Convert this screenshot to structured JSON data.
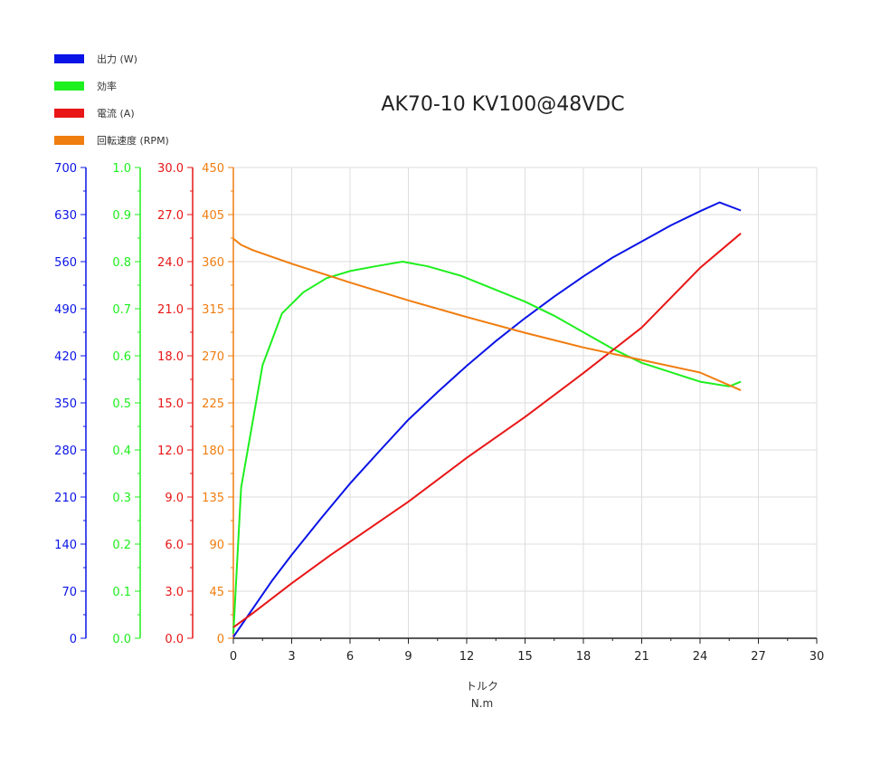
{
  "chart_data": {
    "type": "line",
    "title": "AK70-10 KV100@48VDC",
    "xlabel": "トルク",
    "xunit": "N.m",
    "xlim": [
      0,
      30
    ],
    "xticks": [
      0,
      3,
      6,
      9,
      12,
      15,
      18,
      21,
      24,
      27,
      30
    ],
    "grid": true,
    "legend_position": "top-left",
    "series": [
      {
        "name": "出力 (W)",
        "color": "#0a14e6",
        "axis": {
          "ylim": [
            0,
            700
          ],
          "ticks": [
            "0",
            "70",
            "140",
            "210",
            "280",
            "350",
            "420",
            "490",
            "560",
            "630",
            "700"
          ]
        },
        "x": [
          0,
          1,
          2,
          3,
          4.5,
          6,
          7.5,
          9,
          10.5,
          12,
          13.5,
          15,
          16.5,
          18,
          19.5,
          21,
          22.5,
          24,
          25,
          26.1
        ],
        "y": [
          2,
          44,
          86,
          124,
          178,
          230,
          278,
          325,
          366,
          405,
          442,
          476,
          508,
          538,
          566,
          590,
          614,
          635,
          648,
          636
        ]
      },
      {
        "name": "効率",
        "color": "#1eef1e",
        "axis": {
          "ylim": [
            0,
            1.0
          ],
          "ticks": [
            "0.0",
            "0.1",
            "0.2",
            "0.3",
            "0.4",
            "0.5",
            "0.6",
            "0.7",
            "0.8",
            "0.9",
            "1.0"
          ]
        },
        "x": [
          0,
          0.4,
          1.5,
          2.5,
          3.6,
          4.8,
          6,
          7.3,
          8.7,
          10,
          11.7,
          13.5,
          15,
          16.5,
          18,
          19.5,
          21,
          22.5,
          24,
          25.5,
          26.1
        ],
        "y": [
          0.01,
          0.32,
          0.58,
          0.69,
          0.735,
          0.765,
          0.78,
          0.79,
          0.8,
          0.79,
          0.77,
          0.74,
          0.715,
          0.685,
          0.65,
          0.615,
          0.585,
          0.565,
          0.545,
          0.535,
          0.545
        ]
      },
      {
        "name": "電流 (A)",
        "color": "#e81616",
        "axis": {
          "ylim": [
            0,
            30
          ],
          "ticks": [
            "0.0",
            "3.0",
            "6.0",
            "9.0",
            "12.0",
            "15.0",
            "18.0",
            "21.0",
            "24.0",
            "27.0",
            "30.0"
          ]
        },
        "x": [
          0,
          1,
          3,
          5,
          7,
          9,
          12,
          15,
          18,
          21,
          24,
          26.1
        ],
        "y": [
          0.7,
          1.6,
          3.5,
          5.3,
          7.0,
          8.7,
          11.5,
          14.1,
          16.9,
          19.8,
          23.6,
          25.8
        ]
      },
      {
        "name": "回転速度 (RPM)",
        "color": "#f07d0f",
        "axis": {
          "ylim": [
            0,
            450
          ],
          "ticks": [
            "0",
            "45",
            "90",
            "135",
            "180",
            "225",
            "270",
            "315",
            "360",
            "405",
            "450"
          ]
        },
        "x": [
          0,
          0.4,
          1,
          3,
          6,
          9,
          12,
          15,
          18,
          21,
          24,
          26.1
        ],
        "y": [
          382,
          376,
          371,
          358,
          340,
          323,
          307,
          292,
          278,
          266,
          254,
          237
        ]
      }
    ]
  }
}
